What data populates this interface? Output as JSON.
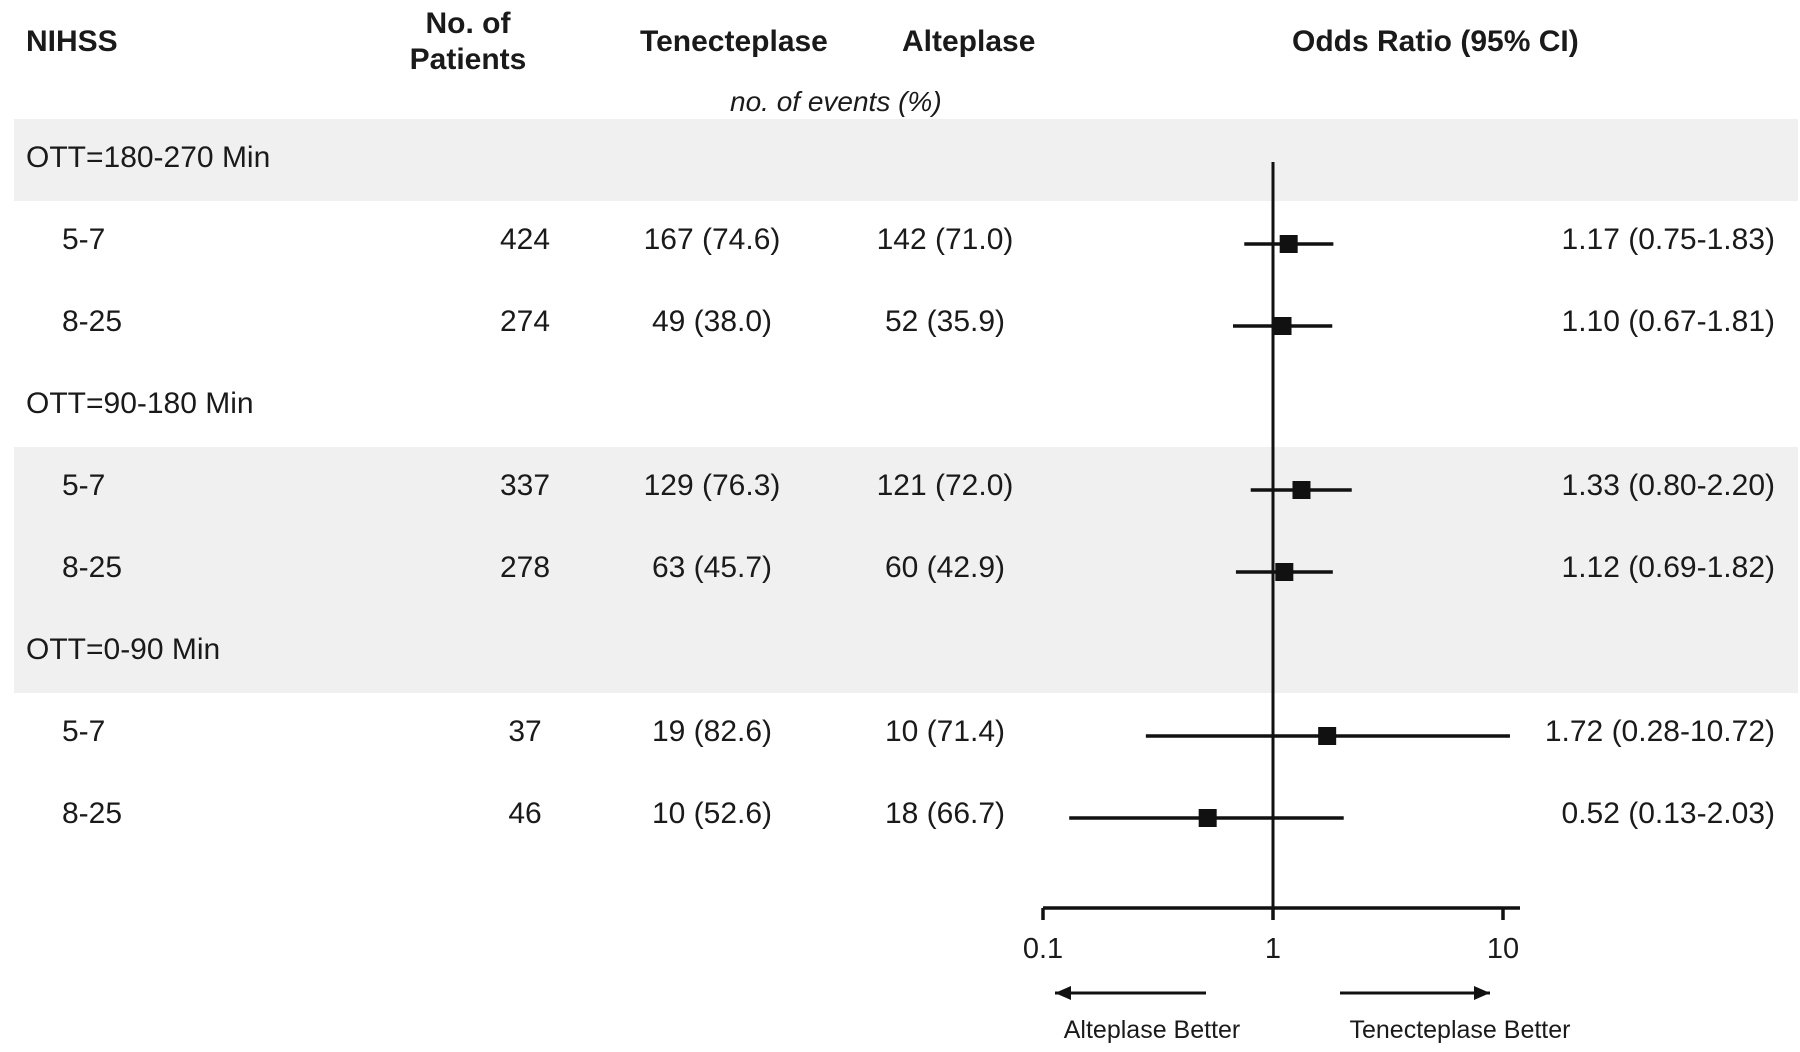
{
  "headers": {
    "nihss": "NIHSS",
    "patients": "No. of\nPatients",
    "tenecteplase": "Tenecteplase",
    "alteplase": "Alteplase",
    "or": "Odds Ratio (95% CI)",
    "events_note": "no. of events (%)"
  },
  "chart_data": {
    "type": "forest",
    "x_scale": "log",
    "xlim": [
      0.1,
      10
    ],
    "x_ticks": [
      "0.1",
      "1",
      "10"
    ],
    "reference_line": 1,
    "direction_labels": {
      "left": "Alteplase Better",
      "right": "Tenecteplase Better"
    },
    "groups": [
      {
        "label": "OTT=180-270 Min",
        "rows": [
          {
            "nihss": "5-7",
            "patients": "424",
            "tenecteplase": "167 (74.6)",
            "alteplase": "142 (71.0)",
            "or": 1.17,
            "lo": 0.75,
            "hi": 1.83,
            "or_text": "1.17 (0.75-1.83)"
          },
          {
            "nihss": "8-25",
            "patients": "274",
            "tenecteplase": "49 (38.0)",
            "alteplase": "52 (35.9)",
            "or": 1.1,
            "lo": 0.67,
            "hi": 1.81,
            "or_text": "1.10 (0.67-1.81)"
          }
        ]
      },
      {
        "label": "OTT=90-180 Min",
        "rows": [
          {
            "nihss": "5-7",
            "patients": "337",
            "tenecteplase": "129 (76.3)",
            "alteplase": "121 (72.0)",
            "or": 1.33,
            "lo": 0.8,
            "hi": 2.2,
            "or_text": "1.33 (0.80-2.20)"
          },
          {
            "nihss": "8-25",
            "patients": "278",
            "tenecteplase": "63 (45.7)",
            "alteplase": "60 (42.9)",
            "or": 1.12,
            "lo": 0.69,
            "hi": 1.82,
            "or_text": "1.12 (0.69-1.82)"
          }
        ]
      },
      {
        "label": "OTT=0-90 Min",
        "rows": [
          {
            "nihss": "5-7",
            "patients": "37",
            "tenecteplase": "19 (82.6)",
            "alteplase": "10 (71.4)",
            "or": 1.72,
            "lo": 0.28,
            "hi": 10.72,
            "or_text": "1.72 (0.28-10.72)"
          },
          {
            "nihss": "8-25",
            "patients": "46",
            "tenecteplase": "10 (52.6)",
            "alteplase": "18 (66.7)",
            "or": 0.52,
            "lo": 0.13,
            "hi": 2.03,
            "or_text": "0.52 (0.13-2.03)"
          }
        ]
      }
    ]
  }
}
